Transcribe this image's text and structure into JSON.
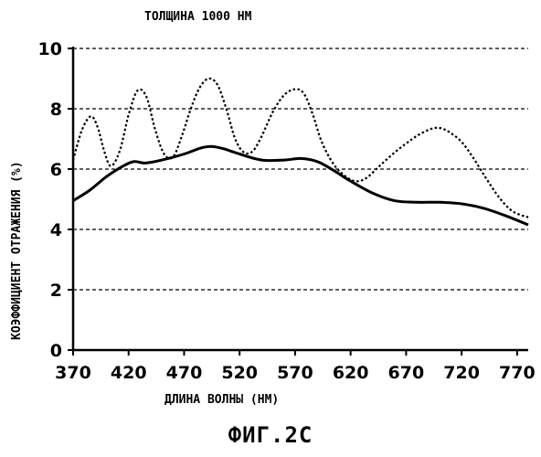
{
  "figure_caption": "ФИГ.2С",
  "chart_data": {
    "type": "line",
    "title": "ТОЛЩИНА 1000 НМ",
    "xlabel": "ДЛИНА ВОЛНЫ (НМ)",
    "ylabel": "КОЭФФИЦИЕНТ ОТРАЖЕНИЯ (%)",
    "xlim": [
      370,
      780
    ],
    "ylim": [
      0,
      10
    ],
    "xticks": [
      370,
      420,
      470,
      520,
      570,
      620,
      670,
      720,
      770
    ],
    "yticks": [
      0,
      2,
      4,
      6,
      8,
      10
    ],
    "grid": "horizontal-dashed",
    "series": [
      {
        "style": "solid",
        "x": [
          370,
          385,
          400,
          415,
          425,
          435,
          450,
          470,
          485,
          495,
          505,
          520,
          540,
          560,
          575,
          590,
          605,
          620,
          640,
          660,
          680,
          700,
          720,
          740,
          760,
          780
        ],
        "y": [
          4.95,
          5.3,
          5.75,
          6.1,
          6.25,
          6.2,
          6.3,
          6.5,
          6.7,
          6.75,
          6.68,
          6.5,
          6.3,
          6.3,
          6.35,
          6.25,
          5.95,
          5.6,
          5.2,
          4.95,
          4.9,
          4.9,
          4.85,
          4.7,
          4.45,
          4.15
        ]
      },
      {
        "style": "dotted",
        "x": [
          370,
          378,
          386,
          392,
          398,
          404,
          412,
          420,
          428,
          436,
          444,
          452,
          460,
          468,
          476,
          484,
          492,
          500,
          508,
          516,
          524,
          532,
          540,
          550,
          560,
          570,
          578,
          586,
          594,
          604,
          614,
          624,
          634,
          646,
          658,
          670,
          682,
          694,
          702,
          710,
          720,
          730,
          742,
          754,
          766,
          780
        ],
        "y": [
          6.3,
          7.3,
          7.75,
          7.4,
          6.6,
          6.1,
          6.6,
          7.8,
          8.6,
          8.4,
          7.3,
          6.5,
          6.4,
          7.1,
          8.0,
          8.7,
          9.0,
          8.8,
          8.0,
          7.0,
          6.55,
          6.6,
          7.1,
          7.9,
          8.45,
          8.65,
          8.5,
          7.8,
          6.9,
          6.2,
          5.8,
          5.6,
          5.7,
          6.1,
          6.5,
          6.85,
          7.15,
          7.35,
          7.35,
          7.2,
          6.9,
          6.4,
          5.7,
          5.05,
          4.6,
          4.4
        ]
      }
    ]
  }
}
